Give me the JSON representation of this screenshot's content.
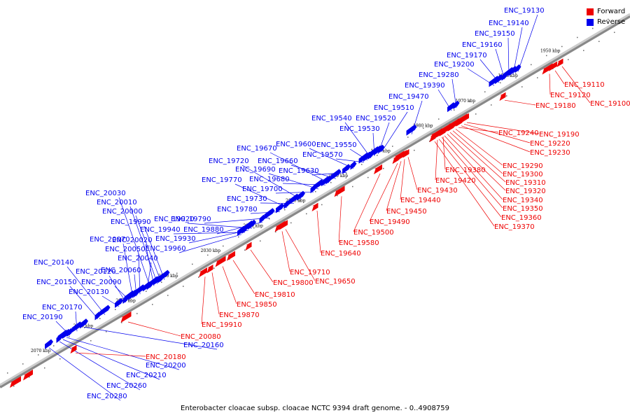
{
  "legend": {
    "forward_label": "Forward",
    "reverse_label": "Reverse",
    "forward_color": "#ee0000",
    "reverse_color": "#0000ee"
  },
  "caption": "Enterobacter cloacae subsp. cloacae NCTC 9394 draft genome. - 0..4908759",
  "scale_labels": [
    "1950 kbp",
    "1960 kbp",
    "1970 kbp",
    "1980 kbp",
    "1990 kbp",
    "2000 kbp",
    "2010 kbp",
    "2020 kbp",
    "2030 kbp",
    "2040 kbp",
    "2050 kbp",
    "2060 kbp",
    "2070 kbp"
  ],
  "forward_genes": [
    "ENC_19100",
    "ENC_19110",
    "ENC_19120",
    "ENC_19180",
    "ENC_19190",
    "ENC_19220",
    "ENC_19230",
    "ENC_19240",
    "ENC_19290",
    "ENC_19300",
    "ENC_19310",
    "ENC_19320",
    "ENC_19340",
    "ENC_19350",
    "ENC_19360",
    "ENC_19370",
    "ENC_19380",
    "ENC_19420",
    "ENC_19430",
    "ENC_19440",
    "ENC_19450",
    "ENC_19490",
    "ENC_19500",
    "ENC_19580",
    "ENC_19640",
    "ENC_19650",
    "ENC_19710",
    "ENC_19800",
    "ENC_19810",
    "ENC_19850",
    "ENC_19870",
    "ENC_19910",
    "ENC_20080",
    "ENC_20180"
  ],
  "reverse_genes": [
    "ENC_19130",
    "ENC_19140",
    "ENC_19150",
    "ENC_19160",
    "ENC_19170",
    "ENC_19200",
    "ENC_19280",
    "ENC_19390",
    "ENC_19470",
    "ENC_19510",
    "ENC_19520",
    "ENC_19530",
    "ENC_19540",
    "ENC_19550",
    "ENC_19570",
    "ENC_19600",
    "ENC_19630",
    "ENC_19660",
    "ENC_19670",
    "ENC_19680",
    "ENC_19690",
    "ENC_19700",
    "ENC_19720",
    "ENC_19730",
    "ENC_19770",
    "ENC_19780",
    "ENC_19790",
    "ENC_19880",
    "ENC_19920",
    "ENC_19930",
    "ENC_19940",
    "ENC_19960",
    "ENC_19990",
    "ENC_20000",
    "ENC_20010",
    "ENC_20020",
    "ENC_20030",
    "ENC_20040",
    "ENC_20050",
    "ENC_20060",
    "ENC_20070",
    "ENC_20090",
    "ENC_20120",
    "ENC_20130",
    "ENC_20140",
    "ENC_20150",
    "ENC_20160",
    "ENC_20170",
    "ENC_20190",
    "ENC_20200",
    "ENC_20210",
    "ENC_20260",
    "ENC_20280"
  ]
}
